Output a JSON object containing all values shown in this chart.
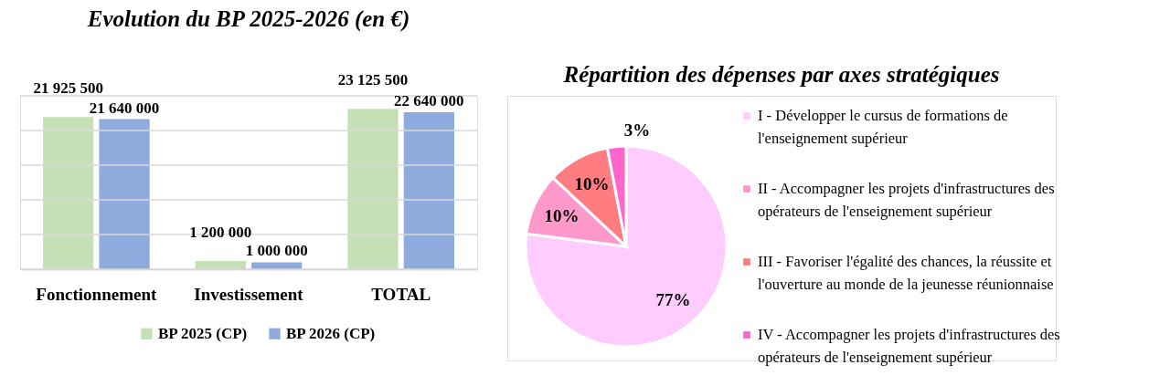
{
  "chart_data": [
    {
      "type": "bar",
      "title": "Evolution du BP 2025-2026 (en €)",
      "categories": [
        "Fonctionnement",
        "Investissement",
        "TOTAL"
      ],
      "series": [
        {
          "name": "BP 2025 (CP)",
          "color": "#c5e0b4",
          "values": [
            21925500,
            1200000,
            23125500
          ]
        },
        {
          "name": "BP 2026 (CP)",
          "color": "#8faadc",
          "values": [
            21640000,
            1000000,
            22640000
          ]
        }
      ],
      "ylim": [
        0,
        25000000
      ],
      "yticks": [
        {
          "value": 0,
          "label": null
        },
        {
          "value": 5000000,
          "label": null
        },
        {
          "value": 10000000,
          "label": null
        },
        {
          "value": 15000000,
          "label": null
        },
        {
          "value": 20000000,
          "label": null
        },
        {
          "value": 25000000,
          "label": null
        }
      ],
      "tick_labels": "x",
      "grid": "y",
      "legend": "bottom",
      "data_labels": true
    },
    {
      "type": "pie",
      "title": "Répartition des dépenses par axes stratégiques",
      "categories": [
        "I - Développer le cursus de formations de l'enseignement supérieur",
        "II - Accompagner les projets d'infrastructures des opérateurs de l'enseignement supérieur",
        "III - Favoriser l'égalité des chances, la réussite et l'ouverture au monde de la jeunesse réunionnaise",
        "IV - Accompagner les projets d'infrastructures des opérateurs de l'enseignement supérieur"
      ],
      "values": [
        77,
        10,
        10,
        3
      ],
      "colors": [
        "#ffccff",
        "#ff99cc",
        "#ff7c80",
        "#ff66cc"
      ],
      "value_labels": [
        "77%",
        "10%",
        "10%",
        "3%"
      ],
      "legend": "right"
    }
  ]
}
